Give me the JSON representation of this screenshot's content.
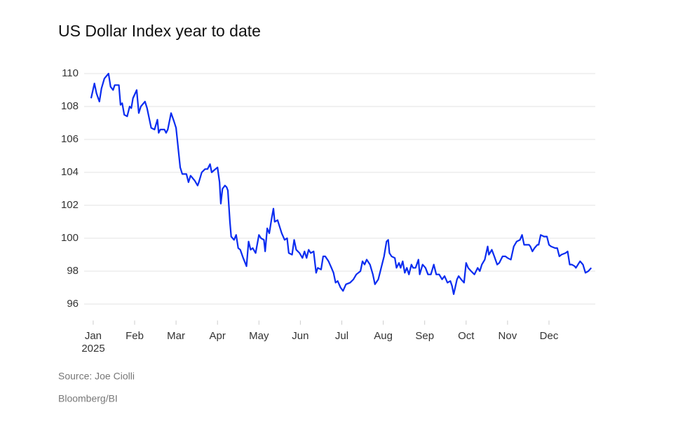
{
  "chart_data": {
    "type": "line",
    "title": "US Dollar Index year to date",
    "source": "Source: Joe Ciolli",
    "credit": "Bloomberg/BI",
    "xtick_sublabel": "2025",
    "xlim": [
      -0.1,
      12.1
    ],
    "xticks": [
      {
        "value": 0,
        "label": "Jan"
      },
      {
        "value": 1,
        "label": "Feb"
      },
      {
        "value": 2,
        "label": "Mar"
      },
      {
        "value": 3,
        "label": "Apr"
      },
      {
        "value": 4,
        "label": "May"
      },
      {
        "value": 5,
        "label": "Jun"
      },
      {
        "value": 6,
        "label": "Jul"
      },
      {
        "value": 7,
        "label": "Aug"
      },
      {
        "value": 8,
        "label": "Sep"
      },
      {
        "value": 9,
        "label": "Oct"
      },
      {
        "value": 10,
        "label": "Nov"
      },
      {
        "value": 11,
        "label": "Dec"
      }
    ],
    "ylim": [
      95,
      110
    ],
    "yticks": [
      96,
      98,
      100,
      102,
      104,
      106,
      108,
      110
    ],
    "grid": true,
    "color": "#0a2cf0",
    "x": [
      -0.05,
      0.03,
      0.08,
      0.15,
      0.2,
      0.27,
      0.37,
      0.42,
      0.48,
      0.52,
      0.62,
      0.66,
      0.7,
      0.75,
      0.82,
      0.88,
      0.92,
      0.96,
      1.05,
      1.1,
      1.15,
      1.25,
      1.3,
      1.4,
      1.48,
      1.55,
      1.58,
      1.62,
      1.72,
      1.76,
      1.8,
      1.88,
      1.95,
      2.0,
      2.05,
      2.1,
      2.15,
      2.25,
      2.3,
      2.35,
      2.45,
      2.52,
      2.55,
      2.62,
      2.7,
      2.76,
      2.82,
      2.86,
      2.95,
      3.0,
      3.05,
      3.08,
      3.12,
      3.18,
      3.22,
      3.25,
      3.3,
      3.33,
      3.4,
      3.45,
      3.5,
      3.55,
      3.62,
      3.7,
      3.75,
      3.8,
      3.85,
      3.92,
      4.0,
      4.05,
      4.12,
      4.15,
      4.2,
      4.25,
      4.3,
      4.35,
      4.38,
      4.45,
      4.5,
      4.55,
      4.62,
      4.68,
      4.72,
      4.8,
      4.85,
      4.9,
      4.98,
      5.05,
      5.1,
      5.15,
      5.2,
      5.25,
      5.32,
      5.38,
      5.42,
      5.5,
      5.55,
      5.6,
      5.68,
      5.75,
      5.8,
      5.85,
      5.9,
      5.97,
      6.03,
      6.1,
      6.2,
      6.28,
      6.35,
      6.45,
      6.5,
      6.55,
      6.6,
      6.68,
      6.75,
      6.8,
      6.88,
      6.95,
      7.02,
      7.08,
      7.12,
      7.15,
      7.2,
      7.28,
      7.32,
      7.38,
      7.42,
      7.47,
      7.52,
      7.57,
      7.62,
      7.68,
      7.72,
      7.78,
      7.85,
      7.88,
      7.95,
      8.02,
      8.08,
      8.15,
      8.22,
      8.28,
      8.35,
      8.42,
      8.48,
      8.55,
      8.62,
      8.66,
      8.7,
      8.78,
      8.82,
      8.88,
      8.95,
      9.0,
      9.05,
      9.12,
      9.2,
      9.28,
      9.33,
      9.38,
      9.45,
      9.52,
      9.55,
      9.62,
      9.68,
      9.75,
      9.8,
      9.88,
      9.95,
      10.0,
      10.08,
      10.15,
      10.22,
      10.3,
      10.35,
      10.4,
      10.45,
      10.52,
      10.55,
      10.6,
      10.65,
      10.72,
      10.75,
      10.8,
      10.88,
      10.95,
      11.0,
      11.05,
      11.15,
      11.2,
      11.25,
      11.3,
      11.4,
      11.45,
      11.5,
      11.55,
      11.62,
      11.65,
      11.7,
      11.75,
      11.82,
      11.88,
      11.95,
      12.02
    ],
    "values": [
      108.5,
      109.4,
      108.8,
      108.3,
      109.1,
      109.7,
      110.0,
      109.2,
      109.0,
      109.3,
      109.3,
      108.1,
      108.2,
      107.5,
      107.4,
      108.0,
      107.9,
      108.5,
      109.0,
      107.6,
      108.0,
      108.3,
      107.9,
      106.7,
      106.6,
      107.2,
      106.4,
      106.6,
      106.6,
      106.4,
      106.6,
      107.6,
      107.1,
      106.7,
      105.5,
      104.3,
      103.9,
      103.9,
      103.4,
      103.8,
      103.5,
      103.2,
      103.4,
      104.0,
      104.2,
      104.2,
      104.5,
      104.0,
      104.2,
      104.3,
      103.4,
      102.1,
      103.0,
      103.2,
      103.1,
      102.9,
      101.0,
      100.1,
      99.9,
      100.2,
      99.4,
      99.3,
      98.8,
      98.3,
      99.8,
      99.3,
      99.4,
      99.1,
      100.2,
      100.0,
      99.9,
      99.2,
      100.6,
      100.3,
      101.1,
      101.8,
      101.0,
      101.1,
      100.7,
      100.3,
      99.9,
      100.0,
      99.1,
      99.0,
      99.9,
      99.3,
      99.1,
      98.8,
      99.2,
      98.8,
      99.3,
      99.1,
      99.2,
      97.9,
      98.2,
      98.1,
      98.9,
      98.9,
      98.6,
      98.2,
      97.9,
      97.3,
      97.4,
      97.0,
      96.8,
      97.2,
      97.3,
      97.5,
      97.8,
      98.0,
      98.6,
      98.4,
      98.7,
      98.4,
      97.8,
      97.2,
      97.5,
      98.2,
      98.9,
      99.8,
      99.9,
      99.1,
      98.9,
      98.8,
      98.2,
      98.5,
      98.2,
      98.6,
      97.9,
      98.2,
      97.8,
      98.4,
      98.2,
      98.2,
      98.7,
      97.8,
      98.4,
      98.2,
      97.8,
      97.8,
      98.4,
      97.8,
      97.8,
      97.5,
      97.7,
      97.3,
      97.4,
      97.1,
      96.6,
      97.5,
      97.7,
      97.5,
      97.3,
      98.5,
      98.2,
      98.0,
      97.8,
      98.2,
      98.0,
      98.4,
      98.7,
      99.5,
      99.0,
      99.3,
      98.9,
      98.4,
      98.5,
      98.9,
      98.9,
      98.8,
      98.7,
      99.5,
      99.8,
      99.9,
      100.2,
      99.6,
      99.6,
      99.6,
      99.5,
      99.2,
      99.4,
      99.6,
      99.6,
      100.2,
      100.1,
      100.1,
      99.6,
      99.5,
      99.4,
      99.4,
      98.9,
      99.0,
      99.1,
      99.2,
      98.4,
      98.4,
      98.3,
      98.2,
      98.4,
      98.6,
      98.4,
      97.9,
      98.0,
      98.2
    ]
  }
}
